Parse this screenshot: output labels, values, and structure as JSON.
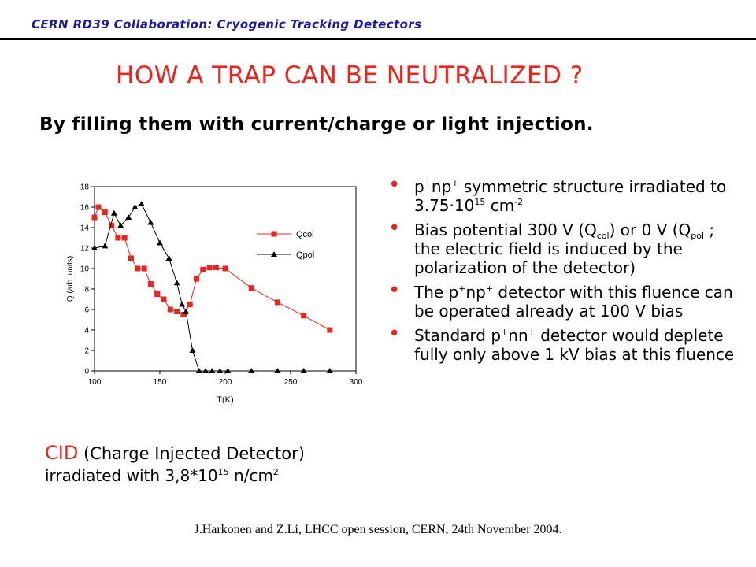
{
  "header": {
    "text": "CERN RD39 Collaboration: Cryogenic Tracking Detectors"
  },
  "title": "HOW A TRAP CAN BE NEUTRALIZED ?",
  "subtitle": "By filling them with current/charge or light injection.",
  "colors": {
    "title": "#e8251e",
    "header": "#1a1aa6",
    "qcol": "#e8251e",
    "qpol": "#000000"
  },
  "bullets": [
    {
      "a": "p",
      "b": "+",
      "c": "np",
      "d": "+",
      "e": "  symmetric structure irradiated to 3.75·10",
      "f": "15",
      "g": " cm",
      "h": "-2"
    },
    {
      "a": "Bias potential 300 V (Q",
      "b": "col",
      "c": ") or 0 V (Q",
      "d": "pol",
      "e": " ; the electric field is induced by the polarization of the detector)"
    },
    {
      "a": "The p",
      "b": "+",
      "c": "np",
      "d": "+",
      "e": " detector with this fluence can be operated already at 100 V bias"
    },
    {
      "a": "Standard p",
      "b": "+",
      "c": "nn",
      "d": "+",
      "e": " detector would deplete fully only above 1 kV bias at this fluence"
    }
  ],
  "cid": {
    "abbr": "CID",
    "rest": " (Charge Injected Detector)",
    "line2a": "irradiated with 3,8*10",
    "line2b": "15",
    "line2c": " n/cm",
    "line2d": "2"
  },
  "footer": "J.Harkonen and Z.Li, LHCC open session, CERN, 24th November 2004.",
  "chart_data": {
    "type": "line",
    "xlabel": "T(K)",
    "ylabel": "Q (arb. units)",
    "xlim": [
      100,
      300
    ],
    "ylim": [
      0,
      18
    ],
    "xticks": [
      100,
      150,
      200,
      250,
      300
    ],
    "yticks": [
      0,
      2,
      4,
      6,
      8,
      10,
      12,
      14,
      16,
      18
    ],
    "grid": false,
    "legend": "right",
    "series": [
      {
        "name": "Qcol",
        "marker": "square",
        "color": "#e8251e",
        "x": [
          100,
          103,
          108,
          113,
          118,
          123,
          128,
          133,
          138,
          143,
          148,
          153,
          158,
          163,
          168,
          173,
          178,
          183,
          188,
          193,
          200,
          220,
          240,
          260,
          280
        ],
        "y": [
          15,
          16,
          15.5,
          14.2,
          13,
          13,
          11,
          10,
          10,
          8.5,
          7.5,
          7,
          6,
          5.8,
          5.5,
          6.5,
          9,
          9.9,
          10.1,
          10.1,
          10,
          8.1,
          6.7,
          5.4,
          4
        ]
      },
      {
        "name": "Qpol",
        "marker": "triangle",
        "color": "#000000",
        "x": [
          100,
          108,
          115,
          120,
          126,
          131,
          136,
          143,
          150,
          157,
          163,
          167,
          170,
          175,
          180,
          185,
          190,
          196,
          202,
          220,
          240,
          260,
          280
        ],
        "y": [
          12,
          12.2,
          15.4,
          14.2,
          15,
          16,
          16.3,
          14.5,
          12.5,
          11,
          8.6,
          6.5,
          5.8,
          2,
          0,
          0,
          0,
          0,
          0,
          0,
          0,
          0,
          0
        ]
      }
    ]
  }
}
